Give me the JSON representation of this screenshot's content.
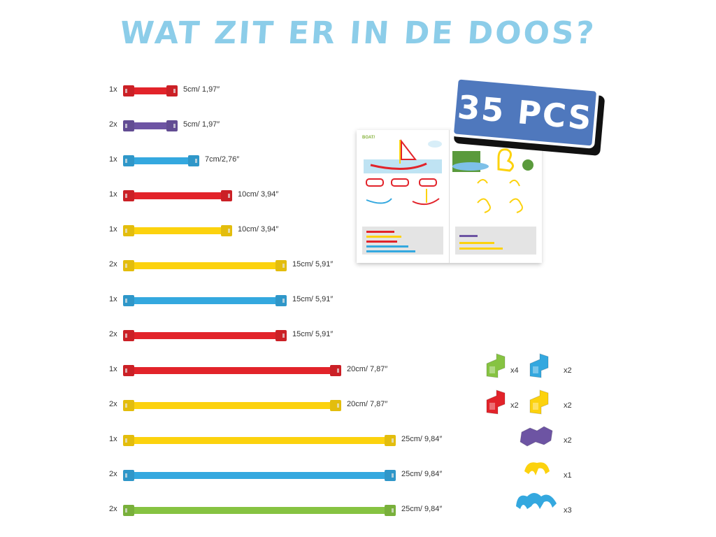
{
  "header": {
    "title": "WAT ZIT ER IN DE DOOS?"
  },
  "badge": {
    "label": "35 PCS"
  },
  "booklet": {
    "heading": "BOAT/",
    "pages": [
      "boat",
      "duck"
    ]
  },
  "colors": {
    "red": "#e2232a",
    "purple": "#6d54a3",
    "blue": "#34a8df",
    "yellow": "#fcd20e",
    "green": "#86c342",
    "title": "#8ccde9",
    "badge": "#4f78bd"
  },
  "tubes": [
    {
      "qty": "1x",
      "color": "red",
      "cm": 5,
      "label": "5cm/ 1,97″"
    },
    {
      "qty": "2x",
      "color": "purple",
      "cm": 5,
      "label": "5cm/ 1,97″"
    },
    {
      "qty": "1x",
      "color": "blue",
      "cm": 7,
      "label": "7cm/2,76″"
    },
    {
      "qty": "1x",
      "color": "red",
      "cm": 10,
      "label": "10cm/ 3,94″"
    },
    {
      "qty": "1x",
      "color": "yellow",
      "cm": 10,
      "label": "10cm/ 3,94″"
    },
    {
      "qty": "2x",
      "color": "yellow",
      "cm": 15,
      "label": "15cm/ 5,91″"
    },
    {
      "qty": "1x",
      "color": "blue",
      "cm": 15,
      "label": "15cm/ 5,91″"
    },
    {
      "qty": "2x",
      "color": "red",
      "cm": 15,
      "label": "15cm/ 5,91″"
    },
    {
      "qty": "1x",
      "color": "red",
      "cm": 20,
      "label": "20cm/ 7,87″"
    },
    {
      "qty": "2x",
      "color": "yellow",
      "cm": 20,
      "label": "20cm/ 7,87″"
    },
    {
      "qty": "1x",
      "color": "yellow",
      "cm": 25,
      "label": "25cm/ 9,84″"
    },
    {
      "qty": "2x",
      "color": "blue",
      "cm": 25,
      "label": "25cm/ 9,84″"
    },
    {
      "qty": "2x",
      "color": "green",
      "cm": 25,
      "label": "25cm/ 9,84″"
    }
  ],
  "connectors": [
    {
      "icon": "green-elbow-connector-icon",
      "color": "green",
      "qty": "x4"
    },
    {
      "icon": "blue-elbow-connector-icon",
      "color": "blue",
      "qty": "x2"
    },
    {
      "icon": "red-elbow-connector-icon",
      "color": "red",
      "qty": "x2"
    },
    {
      "icon": "yellow-elbow-connector-icon",
      "color": "yellow",
      "qty": "x2"
    },
    {
      "icon": "purple-cross-connector-icon",
      "color": "purple",
      "qty": "x2"
    },
    {
      "icon": "yellow-double-clip-icon",
      "color": "yellow",
      "qty": "x1"
    },
    {
      "icon": "blue-triple-clip-icon",
      "color": "blue",
      "qty": "x3"
    }
  ]
}
